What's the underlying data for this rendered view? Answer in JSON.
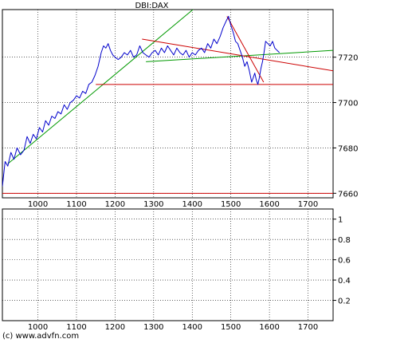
{
  "chart_data": [
    {
      "type": "line",
      "title": "DBI:DAX",
      "x_range": [
        908,
        1765
      ],
      "ylim": [
        7658,
        7741
      ],
      "x_ticks": [
        1000,
        1100,
        1200,
        1300,
        1400,
        1500,
        1600,
        1700
      ],
      "y_ticks": [
        7660,
        7680,
        7700,
        7720
      ],
      "grid": true,
      "series": [
        {
          "color": "#0000cc",
          "x": [
            908,
            915,
            922,
            930,
            938,
            946,
            955,
            964,
            972,
            980,
            988,
            996,
            1004,
            1012,
            1020,
            1028,
            1036,
            1044,
            1052,
            1060,
            1068,
            1076,
            1084,
            1092,
            1100,
            1108,
            1116,
            1124,
            1132,
            1140,
            1148,
            1156,
            1164,
            1170,
            1176,
            1182,
            1188,
            1194,
            1200,
            1208,
            1216,
            1224,
            1232,
            1240,
            1248,
            1256,
            1264,
            1272,
            1280,
            1288,
            1296,
            1304,
            1312,
            1320,
            1328,
            1336,
            1344,
            1352,
            1360,
            1368,
            1376,
            1384,
            1392,
            1400,
            1408,
            1416,
            1424,
            1432,
            1440,
            1448,
            1456,
            1464,
            1472,
            1480,
            1488,
            1494,
            1500,
            1506,
            1512,
            1518,
            1524,
            1530,
            1536,
            1542,
            1548,
            1554,
            1558,
            1562,
            1566,
            1570,
            1574,
            1578,
            1582,
            1586,
            1590,
            1596,
            1602,
            1608,
            1614,
            1620,
            1626
          ],
          "y": [
            7663,
            7674,
            7672,
            7678,
            7675,
            7680,
            7677,
            7679,
            7685,
            7682,
            7686,
            7684,
            7689,
            7687,
            7692,
            7690,
            7694,
            7693,
            7696,
            7695,
            7699,
            7697,
            7700,
            7701,
            7703,
            7702,
            7705,
            7704,
            7708,
            7709,
            7712,
            7716,
            7722,
            7725,
            7724,
            7726,
            7723,
            7721,
            7720,
            7719,
            7720,
            7722,
            7721,
            7723,
            7720,
            7721,
            7725,
            7722,
            7721,
            7720,
            7722,
            7723,
            7721,
            7724,
            7722,
            7725,
            7723,
            7721,
            7724,
            7722,
            7721,
            7723,
            7720,
            7722,
            7721,
            7723,
            7724,
            7722,
            7726,
            7724,
            7728,
            7726,
            7729,
            7733,
            7736,
            7738,
            7734,
            7731,
            7727,
            7726,
            7723,
            7720,
            7716,
            7718,
            7714,
            7709,
            7711,
            7713,
            7710,
            7708,
            7711,
            7715,
            7718,
            7722,
            7727,
            7726,
            7725,
            7727,
            7724,
            7723,
            7722
          ]
        }
      ],
      "trend_lines": [
        {
          "color": "#009900",
          "from": [
            922,
            7673
          ],
          "to": [
            1430,
            7745
          ]
        },
        {
          "color": "#009900",
          "from": [
            1280,
            7718
          ],
          "to": [
            1765,
            7723
          ]
        },
        {
          "color": "#cc0000",
          "from": [
            1270,
            7728
          ],
          "to": [
            1765,
            7714
          ]
        },
        {
          "color": "#cc0000",
          "from": [
            1150,
            7708
          ],
          "to": [
            1765,
            7708
          ]
        },
        {
          "color": "#cc0000",
          "from": [
            1490,
            7738
          ],
          "to": [
            1585,
            7709
          ]
        },
        {
          "color": "#cc0000",
          "from": [
            908,
            7660
          ],
          "to": [
            1765,
            7660
          ]
        }
      ]
    },
    {
      "type": "line",
      "x_range": [
        908,
        1765
      ],
      "ylim": [
        0,
        1.1
      ],
      "x_ticks": [
        1000,
        1100,
        1200,
        1300,
        1400,
        1500,
        1600,
        1700
      ],
      "y_ticks": [
        0.2,
        0.4,
        0.6,
        0.8,
        1
      ],
      "grid": true,
      "series": []
    }
  ],
  "footer": {
    "copyright": "(c) www.advfn.com"
  }
}
